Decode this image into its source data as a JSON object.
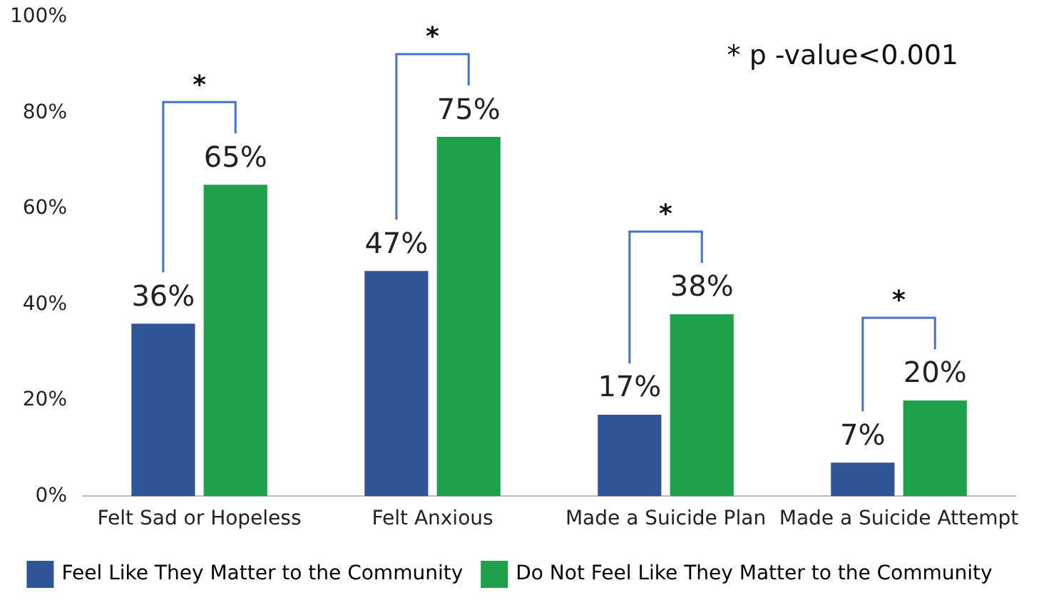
{
  "chart_data": {
    "type": "bar",
    "categories": [
      "Felt Sad or Hopeless",
      "Felt Anxious",
      "Made a Suicide Plan",
      "Made a Suicide Attempt"
    ],
    "series": [
      {
        "name": "Feel Like They Matter to the Community",
        "color": "#2f5597",
        "values": [
          36,
          47,
          17,
          7
        ]
      },
      {
        "name": "Do Not Feel Like They Matter to the Community",
        "color": "#1fa04a",
        "values": [
          65,
          75,
          38,
          20
        ]
      }
    ],
    "ylim": [
      0,
      100
    ],
    "yticks": [
      {
        "value": 0,
        "label": "0%"
      },
      {
        "value": 20,
        "label": "20%"
      },
      {
        "value": 40,
        "label": "40%"
      },
      {
        "value": 60,
        "label": "60%"
      },
      {
        "value": 80,
        "label": "80%"
      },
      {
        "value": 100,
        "label": "100%"
      }
    ],
    "value_labels": [
      [
        "36%",
        "47%",
        "17%",
        "7%"
      ],
      [
        "65%",
        "75%",
        "38%",
        "20%"
      ]
    ],
    "annotations": [
      "*",
      "*",
      "*",
      "*",
      "* p -value<0.001"
    ],
    "grid": false,
    "legend": "bottom"
  }
}
